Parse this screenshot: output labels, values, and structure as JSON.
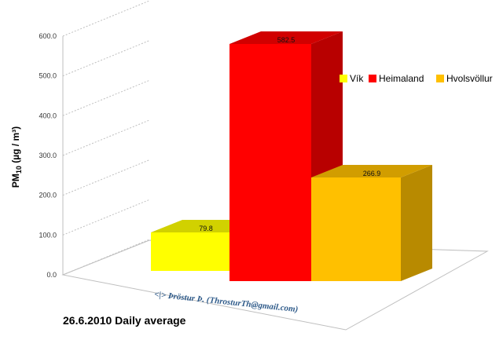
{
  "chart_data": {
    "type": "bar",
    "categories": [
      "Vík",
      "Heimaland",
      "Hvolsvöllur"
    ],
    "values": [
      79.8,
      582.5,
      266.9
    ],
    "data_labels": [
      "79.8",
      "582.5",
      "266.9"
    ],
    "colors": [
      "#ffff00",
      "#ff0000",
      "#ffc000"
    ],
    "ylabel_main": "PM",
    "ylabel_sub": "10",
    "ylabel_unit": " (µg / m³)",
    "yticks": [
      "0.0",
      "100.0",
      "200.0",
      "300.0",
      "400.0",
      "500.0",
      "600.0"
    ],
    "ylim": [
      0,
      600
    ],
    "legend": [
      "Vík",
      "Heimaland",
      "Hvolsvöllur"
    ],
    "legend_position": "right",
    "grid": true,
    "style": "3d"
  },
  "credit": "<|> Þröstur Þ. (ThrosturTh@gmail.com)",
  "footer": "26.6.2010 Daily average"
}
